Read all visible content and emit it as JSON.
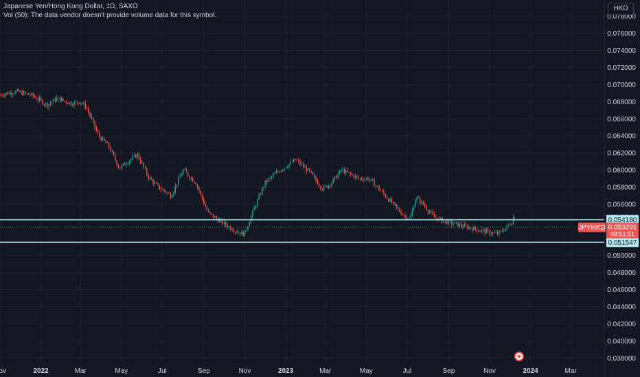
{
  "header": {
    "title": "Japanese Yen/Hong Kong Dollar, 1D, SAXO",
    "volume_note": "Vol (50): The data vendor doesn't provide volume data for this symbol."
  },
  "currency_button": "HKD",
  "colors": {
    "background": "#131722",
    "up": "#26a69a",
    "down": "#ef5350",
    "level_line": "#b2ebf2",
    "grid": "#1e2230",
    "axis_text": "#d1d4dc"
  },
  "chart_data": {
    "type": "candlestick",
    "symbol": "JPYHKD",
    "interval": "1D",
    "x_range": [
      "2021-11-01",
      "2024-04-20"
    ],
    "ylim": [
      0.0373,
      0.0799
    ],
    "y_ticks": [
      "0.078000",
      "0.076000",
      "0.074000",
      "0.072000",
      "0.070000",
      "0.068000",
      "0.066000",
      "0.064000",
      "0.062000",
      "0.060000",
      "0.058000",
      "0.056000",
      "0.050000",
      "0.048000",
      "0.046000",
      "0.044000",
      "0.042000",
      "0.040000",
      "0.038000"
    ],
    "x_ticks": [
      {
        "label": "Nov",
        "date": "2021-11-01"
      },
      {
        "label": "2022",
        "date": "2022-01-01"
      },
      {
        "label": "Mar",
        "date": "2022-03-01"
      },
      {
        "label": "May",
        "date": "2022-05-01"
      },
      {
        "label": "Jul",
        "date": "2022-07-01"
      },
      {
        "label": "Sep",
        "date": "2022-09-01"
      },
      {
        "label": "Nov",
        "date": "2022-11-01"
      },
      {
        "label": "2023",
        "date": "2023-01-01"
      },
      {
        "label": "Mar",
        "date": "2023-03-01"
      },
      {
        "label": "May",
        "date": "2023-05-01"
      },
      {
        "label": "Jul",
        "date": "2023-07-01"
      },
      {
        "label": "Sep",
        "date": "2023-09-01"
      },
      {
        "label": "Nov",
        "date": "2023-11-01"
      },
      {
        "label": "2024",
        "date": "2024-01-01"
      },
      {
        "label": "Mar",
        "date": "2024-03-01"
      }
    ],
    "price_path": [
      {
        "date": "2021-11-01",
        "close": 0.0688
      },
      {
        "date": "2021-11-25",
        "close": 0.0692
      },
      {
        "date": "2021-12-20",
        "close": 0.0687
      },
      {
        "date": "2022-01-10",
        "close": 0.0676
      },
      {
        "date": "2022-01-25",
        "close": 0.0684
      },
      {
        "date": "2022-02-15",
        "close": 0.0678
      },
      {
        "date": "2022-03-01",
        "close": 0.068
      },
      {
        "date": "2022-03-10",
        "close": 0.0673
      },
      {
        "date": "2022-03-28",
        "close": 0.064
      },
      {
        "date": "2022-04-12",
        "close": 0.0628
      },
      {
        "date": "2022-04-28",
        "close": 0.0602
      },
      {
        "date": "2022-05-10",
        "close": 0.061
      },
      {
        "date": "2022-05-25",
        "close": 0.0618
      },
      {
        "date": "2022-06-10",
        "close": 0.0592
      },
      {
        "date": "2022-06-25",
        "close": 0.058
      },
      {
        "date": "2022-07-14",
        "close": 0.057
      },
      {
        "date": "2022-08-01",
        "close": 0.06
      },
      {
        "date": "2022-08-20",
        "close": 0.0585
      },
      {
        "date": "2022-09-07",
        "close": 0.055
      },
      {
        "date": "2022-09-25",
        "close": 0.054
      },
      {
        "date": "2022-10-20",
        "close": 0.0528
      },
      {
        "date": "2022-10-31",
        "close": 0.0525
      },
      {
        "date": "2022-11-15",
        "close": 0.0555
      },
      {
        "date": "2022-12-01",
        "close": 0.0585
      },
      {
        "date": "2022-12-20",
        "close": 0.0598
      },
      {
        "date": "2023-01-16",
        "close": 0.0612
      },
      {
        "date": "2023-02-05",
        "close": 0.0598
      },
      {
        "date": "2023-02-25",
        "close": 0.0578
      },
      {
        "date": "2023-03-10",
        "close": 0.0585
      },
      {
        "date": "2023-03-25",
        "close": 0.06
      },
      {
        "date": "2023-04-20",
        "close": 0.059
      },
      {
        "date": "2023-05-05",
        "close": 0.059
      },
      {
        "date": "2023-05-20",
        "close": 0.0578
      },
      {
        "date": "2023-06-10",
        "close": 0.056
      },
      {
        "date": "2023-06-25",
        "close": 0.0548
      },
      {
        "date": "2023-07-05",
        "close": 0.0542
      },
      {
        "date": "2023-07-14",
        "close": 0.0568
      },
      {
        "date": "2023-07-25",
        "close": 0.056
      },
      {
        "date": "2023-08-10",
        "close": 0.0545
      },
      {
        "date": "2023-08-25",
        "close": 0.054
      },
      {
        "date": "2023-09-20",
        "close": 0.0535
      },
      {
        "date": "2023-10-15",
        "close": 0.053
      },
      {
        "date": "2023-11-13",
        "close": 0.0525
      },
      {
        "date": "2023-11-25",
        "close": 0.0532
      },
      {
        "date": "2023-12-05",
        "close": 0.054
      },
      {
        "date": "2023-12-08",
        "close": 0.055
      },
      {
        "date": "2023-12-11",
        "close": 0.0533
      }
    ],
    "horizontal_levels": [
      {
        "price": 0.05418,
        "label": "0.054180"
      },
      {
        "price": 0.051547,
        "label": "0.051547"
      }
    ],
    "last_price": {
      "symbol": "JPYHKD",
      "price": 0.053291,
      "label": "0.053291",
      "countdown": "08:51:51"
    },
    "event_marker": {
      "date": "2023-12-15"
    }
  }
}
